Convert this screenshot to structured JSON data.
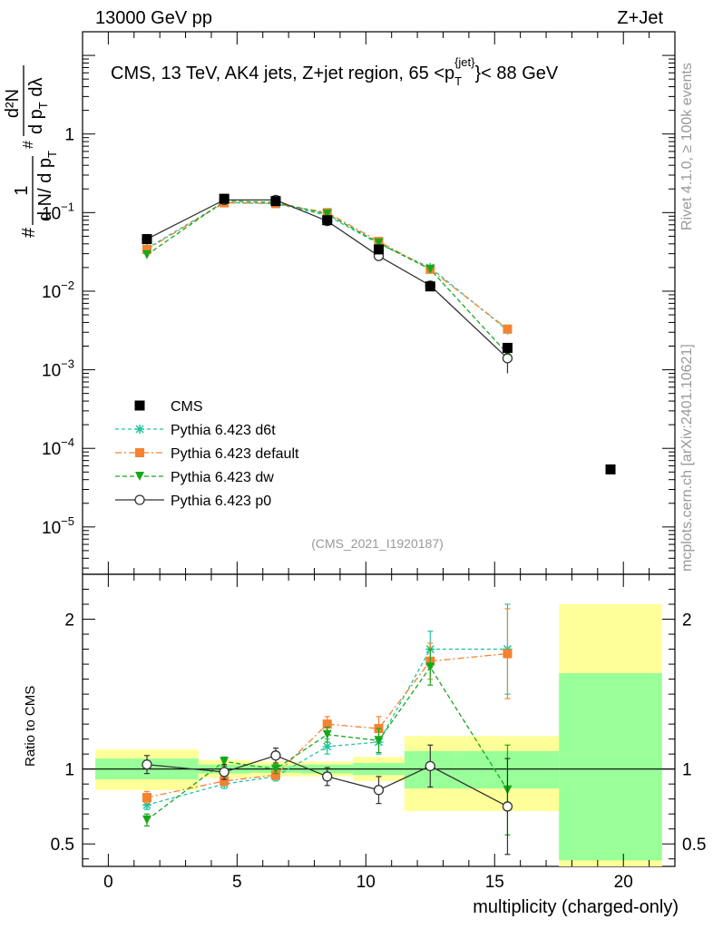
{
  "header": {
    "left": "13000 GeV pp",
    "right": "Z+Jet"
  },
  "side": {
    "rivet": "Rivet 4.1.0, ≥ 100k events",
    "mcplots": "mcplots.cern.ch [arXiv:2401.10621]"
  },
  "main": {
    "title_pre": "CMS, 13 TeV, AK4 jets, Z+jet region, 65 <p",
    "title_sup": "{jet}",
    "title_sub": "T",
    "title_post": "}< 88 GeV",
    "ylabel_hash1": "#",
    "ylabel_one": "1",
    "ylabel_denom": "d N/ d p",
    "ylabel_denom_sub": "T",
    "ylabel_frac_num": "d²N",
    "ylabel_frac_den": "d p",
    "ylabel_frac_den_sub": "T",
    "ylabel_frac_tail": " dλ",
    "ylabel_hash2": "#",
    "watermark": "(CMS_2021_I1920187)"
  },
  "ratio": {
    "ylabel": "Ratio to CMS"
  },
  "xaxis": {
    "label": "multiplicity (charged-only)"
  },
  "colors": {
    "cms": "#000000",
    "d6t": "#20c5a0",
    "default": "#f58231",
    "dw": "#17a81a",
    "p0": "#333333",
    "band_inner": "#99ff99",
    "band_outer": "#ffff99"
  },
  "chart_data": {
    "type": "scatter",
    "x_range": [
      -1,
      22
    ],
    "x_ticks": [
      0,
      5,
      10,
      15,
      20
    ],
    "main": {
      "yscale": "log",
      "ylim": [
        2.5e-06,
        20
      ],
      "y_ticks": [
        {
          "value": 1,
          "mantissa": "1",
          "exp": ""
        },
        {
          "value": 0.1,
          "mantissa": "10",
          "exp": "−1"
        },
        {
          "value": 0.01,
          "mantissa": "10",
          "exp": "−2"
        },
        {
          "value": 0.001,
          "mantissa": "10",
          "exp": "−3"
        },
        {
          "value": 0.0001,
          "mantissa": "10",
          "exp": "−4"
        },
        {
          "value": 1e-05,
          "mantissa": "10",
          "exp": "−5"
        }
      ]
    },
    "ratio": {
      "ylim": [
        0.35,
        2.3
      ],
      "y_ticks": [
        {
          "value": 0.5,
          "label": "0.5"
        },
        {
          "value": 1,
          "label": "1"
        },
        {
          "value": 2,
          "label": "2"
        }
      ],
      "bands": [
        {
          "x0": -0.5,
          "x1": 3.5,
          "inner": [
            0.93,
            1.07
          ],
          "outer": [
            0.86,
            1.13
          ]
        },
        {
          "x0": 3.5,
          "x1": 5.5,
          "inner": [
            0.97,
            1.03
          ],
          "outer": [
            0.94,
            1.06
          ]
        },
        {
          "x0": 5.5,
          "x1": 7.5,
          "inner": [
            0.975,
            1.025
          ],
          "outer": [
            0.95,
            1.05
          ]
        },
        {
          "x0": 7.5,
          "x1": 9.5,
          "inner": [
            0.97,
            1.03
          ],
          "outer": [
            0.95,
            1.05
          ]
        },
        {
          "x0": 9.5,
          "x1": 11.5,
          "inner": [
            0.96,
            1.04
          ],
          "outer": [
            0.92,
            1.08
          ]
        },
        {
          "x0": 11.5,
          "x1": 13.5,
          "inner": [
            0.87,
            1.12
          ],
          "outer": [
            0.72,
            1.22
          ]
        },
        {
          "x0": 13.5,
          "x1": 17.5,
          "inner": [
            0.87,
            1.12
          ],
          "outer": [
            0.72,
            1.22
          ]
        },
        {
          "x0": 17.5,
          "x1": 21.5,
          "inner": [
            0.39,
            1.64
          ],
          "outer": [
            0.35,
            2.1
          ]
        }
      ]
    },
    "cms": {
      "name": "CMS",
      "x": [
        1.5,
        4.5,
        6.5,
        8.5,
        10.5,
        12.5,
        15.5,
        19.5
      ],
      "y": [
        0.046,
        0.15,
        0.14,
        0.08,
        0.034,
        0.0115,
        0.0019,
        5.4e-05
      ],
      "yerr": [
        0.003,
        0.006,
        0.004,
        0.003,
        0.002,
        0.0015,
        0.0003,
        0.0
      ]
    },
    "series": [
      {
        "key": "d6t",
        "name": "Pythia 6.423 d6t",
        "marker": "star",
        "dash": "4,3",
        "x": [
          1.5,
          4.5,
          6.5,
          8.5,
          10.5,
          12.5,
          15.5
        ],
        "y": [
          0.035,
          0.135,
          0.13,
          0.092,
          0.04,
          0.02,
          0.0032
        ],
        "ratio": [
          0.76,
          0.9,
          0.95,
          1.15,
          1.18,
          1.8,
          1.8
        ],
        "ratio_err": [
          0.03,
          0.03,
          0.03,
          0.05,
          0.08,
          0.12,
          0.3
        ]
      },
      {
        "key": "default",
        "name": "Pythia 6.423 default",
        "marker": "square",
        "dash": "7,3,2,3",
        "x": [
          1.5,
          4.5,
          6.5,
          8.5,
          10.5,
          12.5,
          15.5
        ],
        "y": [
          0.034,
          0.133,
          0.13,
          0.1,
          0.043,
          0.019,
          0.0033
        ],
        "ratio": [
          0.81,
          0.92,
          0.96,
          1.3,
          1.27,
          1.72,
          1.77
        ],
        "ratio_err": [
          0.04,
          0.03,
          0.03,
          0.05,
          0.08,
          0.12,
          0.3
        ]
      },
      {
        "key": "dw",
        "name": "Pythia 6.423 dw",
        "marker": "triangle-down",
        "dash": "5,3",
        "x": [
          1.5,
          4.5,
          6.5,
          8.5,
          10.5,
          12.5,
          15.5
        ],
        "y": [
          0.029,
          0.14,
          0.135,
          0.096,
          0.041,
          0.019,
          0.0016
        ],
        "ratio": [
          0.66,
          1.05,
          1.0,
          1.23,
          1.19,
          1.68,
          0.86
        ],
        "ratio_err": [
          0.04,
          0.03,
          0.03,
          0.05,
          0.08,
          0.12,
          0.3
        ]
      },
      {
        "key": "p0",
        "name": "Pythia 6.423 p0",
        "marker": "circle-open",
        "dash": "",
        "x": [
          1.5,
          4.5,
          6.5,
          8.5,
          10.5,
          12.5,
          15.5
        ],
        "y": [
          0.046,
          0.145,
          0.145,
          0.078,
          0.028,
          0.0118,
          0.0014
        ],
        "ratio": [
          1.03,
          0.98,
          1.09,
          0.95,
          0.86,
          1.02,
          0.75
        ],
        "ratio_err": [
          0.06,
          0.05,
          0.05,
          0.06,
          0.09,
          0.14,
          0.32
        ],
        "yerr": [
          0.003,
          0.006,
          0.006,
          0.003,
          0.002,
          0.001,
          0.0005
        ]
      }
    ]
  }
}
